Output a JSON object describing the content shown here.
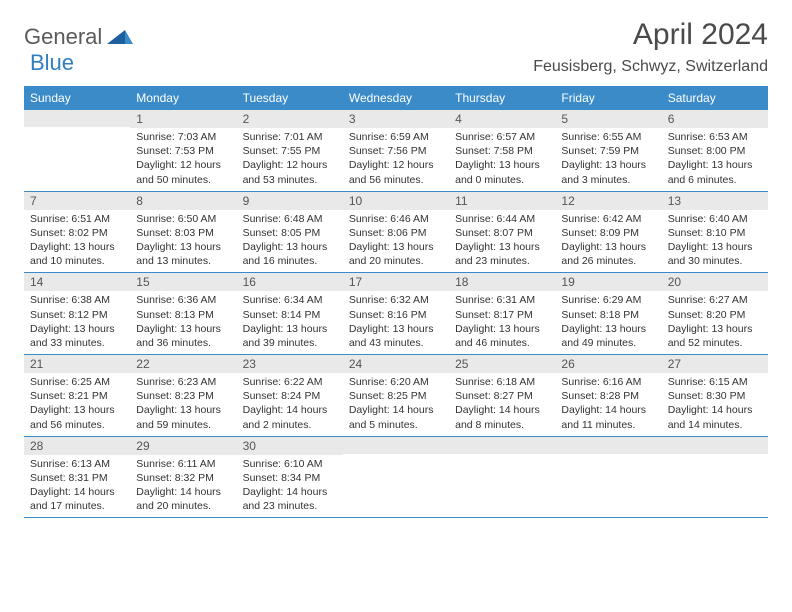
{
  "logo": {
    "general": "General",
    "blue": "Blue"
  },
  "title": "April 2024",
  "location": "Feusisberg, Schwyz, Switzerland",
  "colors": {
    "header_bg": "#3b8bc9",
    "header_text": "#ffffff",
    "daynum_bg": "#e9e9e9",
    "rule": "#3b8bc9",
    "text": "#333333",
    "logo_gray": "#5b5b5b",
    "logo_blue": "#2f7fc2"
  },
  "typography": {
    "title_fontsize": 30,
    "location_fontsize": 16,
    "header_fontsize": 12,
    "daynum_fontsize": 12,
    "body_fontsize": 10.5
  },
  "columns": [
    "Sunday",
    "Monday",
    "Tuesday",
    "Wednesday",
    "Thursday",
    "Friday",
    "Saturday"
  ],
  "rows": [
    [
      null,
      {
        "n": "1",
        "sr": "Sunrise: 7:03 AM",
        "ss": "Sunset: 7:53 PM",
        "d1": "Daylight: 12 hours",
        "d2": "and 50 minutes."
      },
      {
        "n": "2",
        "sr": "Sunrise: 7:01 AM",
        "ss": "Sunset: 7:55 PM",
        "d1": "Daylight: 12 hours",
        "d2": "and 53 minutes."
      },
      {
        "n": "3",
        "sr": "Sunrise: 6:59 AM",
        "ss": "Sunset: 7:56 PM",
        "d1": "Daylight: 12 hours",
        "d2": "and 56 minutes."
      },
      {
        "n": "4",
        "sr": "Sunrise: 6:57 AM",
        "ss": "Sunset: 7:58 PM",
        "d1": "Daylight: 13 hours",
        "d2": "and 0 minutes."
      },
      {
        "n": "5",
        "sr": "Sunrise: 6:55 AM",
        "ss": "Sunset: 7:59 PM",
        "d1": "Daylight: 13 hours",
        "d2": "and 3 minutes."
      },
      {
        "n": "6",
        "sr": "Sunrise: 6:53 AM",
        "ss": "Sunset: 8:00 PM",
        "d1": "Daylight: 13 hours",
        "d2": "and 6 minutes."
      }
    ],
    [
      {
        "n": "7",
        "sr": "Sunrise: 6:51 AM",
        "ss": "Sunset: 8:02 PM",
        "d1": "Daylight: 13 hours",
        "d2": "and 10 minutes."
      },
      {
        "n": "8",
        "sr": "Sunrise: 6:50 AM",
        "ss": "Sunset: 8:03 PM",
        "d1": "Daylight: 13 hours",
        "d2": "and 13 minutes."
      },
      {
        "n": "9",
        "sr": "Sunrise: 6:48 AM",
        "ss": "Sunset: 8:05 PM",
        "d1": "Daylight: 13 hours",
        "d2": "and 16 minutes."
      },
      {
        "n": "10",
        "sr": "Sunrise: 6:46 AM",
        "ss": "Sunset: 8:06 PM",
        "d1": "Daylight: 13 hours",
        "d2": "and 20 minutes."
      },
      {
        "n": "11",
        "sr": "Sunrise: 6:44 AM",
        "ss": "Sunset: 8:07 PM",
        "d1": "Daylight: 13 hours",
        "d2": "and 23 minutes."
      },
      {
        "n": "12",
        "sr": "Sunrise: 6:42 AM",
        "ss": "Sunset: 8:09 PM",
        "d1": "Daylight: 13 hours",
        "d2": "and 26 minutes."
      },
      {
        "n": "13",
        "sr": "Sunrise: 6:40 AM",
        "ss": "Sunset: 8:10 PM",
        "d1": "Daylight: 13 hours",
        "d2": "and 30 minutes."
      }
    ],
    [
      {
        "n": "14",
        "sr": "Sunrise: 6:38 AM",
        "ss": "Sunset: 8:12 PM",
        "d1": "Daylight: 13 hours",
        "d2": "and 33 minutes."
      },
      {
        "n": "15",
        "sr": "Sunrise: 6:36 AM",
        "ss": "Sunset: 8:13 PM",
        "d1": "Daylight: 13 hours",
        "d2": "and 36 minutes."
      },
      {
        "n": "16",
        "sr": "Sunrise: 6:34 AM",
        "ss": "Sunset: 8:14 PM",
        "d1": "Daylight: 13 hours",
        "d2": "and 39 minutes."
      },
      {
        "n": "17",
        "sr": "Sunrise: 6:32 AM",
        "ss": "Sunset: 8:16 PM",
        "d1": "Daylight: 13 hours",
        "d2": "and 43 minutes."
      },
      {
        "n": "18",
        "sr": "Sunrise: 6:31 AM",
        "ss": "Sunset: 8:17 PM",
        "d1": "Daylight: 13 hours",
        "d2": "and 46 minutes."
      },
      {
        "n": "19",
        "sr": "Sunrise: 6:29 AM",
        "ss": "Sunset: 8:18 PM",
        "d1": "Daylight: 13 hours",
        "d2": "and 49 minutes."
      },
      {
        "n": "20",
        "sr": "Sunrise: 6:27 AM",
        "ss": "Sunset: 8:20 PM",
        "d1": "Daylight: 13 hours",
        "d2": "and 52 minutes."
      }
    ],
    [
      {
        "n": "21",
        "sr": "Sunrise: 6:25 AM",
        "ss": "Sunset: 8:21 PM",
        "d1": "Daylight: 13 hours",
        "d2": "and 56 minutes."
      },
      {
        "n": "22",
        "sr": "Sunrise: 6:23 AM",
        "ss": "Sunset: 8:23 PM",
        "d1": "Daylight: 13 hours",
        "d2": "and 59 minutes."
      },
      {
        "n": "23",
        "sr": "Sunrise: 6:22 AM",
        "ss": "Sunset: 8:24 PM",
        "d1": "Daylight: 14 hours",
        "d2": "and 2 minutes."
      },
      {
        "n": "24",
        "sr": "Sunrise: 6:20 AM",
        "ss": "Sunset: 8:25 PM",
        "d1": "Daylight: 14 hours",
        "d2": "and 5 minutes."
      },
      {
        "n": "25",
        "sr": "Sunrise: 6:18 AM",
        "ss": "Sunset: 8:27 PM",
        "d1": "Daylight: 14 hours",
        "d2": "and 8 minutes."
      },
      {
        "n": "26",
        "sr": "Sunrise: 6:16 AM",
        "ss": "Sunset: 8:28 PM",
        "d1": "Daylight: 14 hours",
        "d2": "and 11 minutes."
      },
      {
        "n": "27",
        "sr": "Sunrise: 6:15 AM",
        "ss": "Sunset: 8:30 PM",
        "d1": "Daylight: 14 hours",
        "d2": "and 14 minutes."
      }
    ],
    [
      {
        "n": "28",
        "sr": "Sunrise: 6:13 AM",
        "ss": "Sunset: 8:31 PM",
        "d1": "Daylight: 14 hours",
        "d2": "and 17 minutes."
      },
      {
        "n": "29",
        "sr": "Sunrise: 6:11 AM",
        "ss": "Sunset: 8:32 PM",
        "d1": "Daylight: 14 hours",
        "d2": "and 20 minutes."
      },
      {
        "n": "30",
        "sr": "Sunrise: 6:10 AM",
        "ss": "Sunset: 8:34 PM",
        "d1": "Daylight: 14 hours",
        "d2": "and 23 minutes."
      },
      null,
      null,
      null,
      null
    ]
  ]
}
